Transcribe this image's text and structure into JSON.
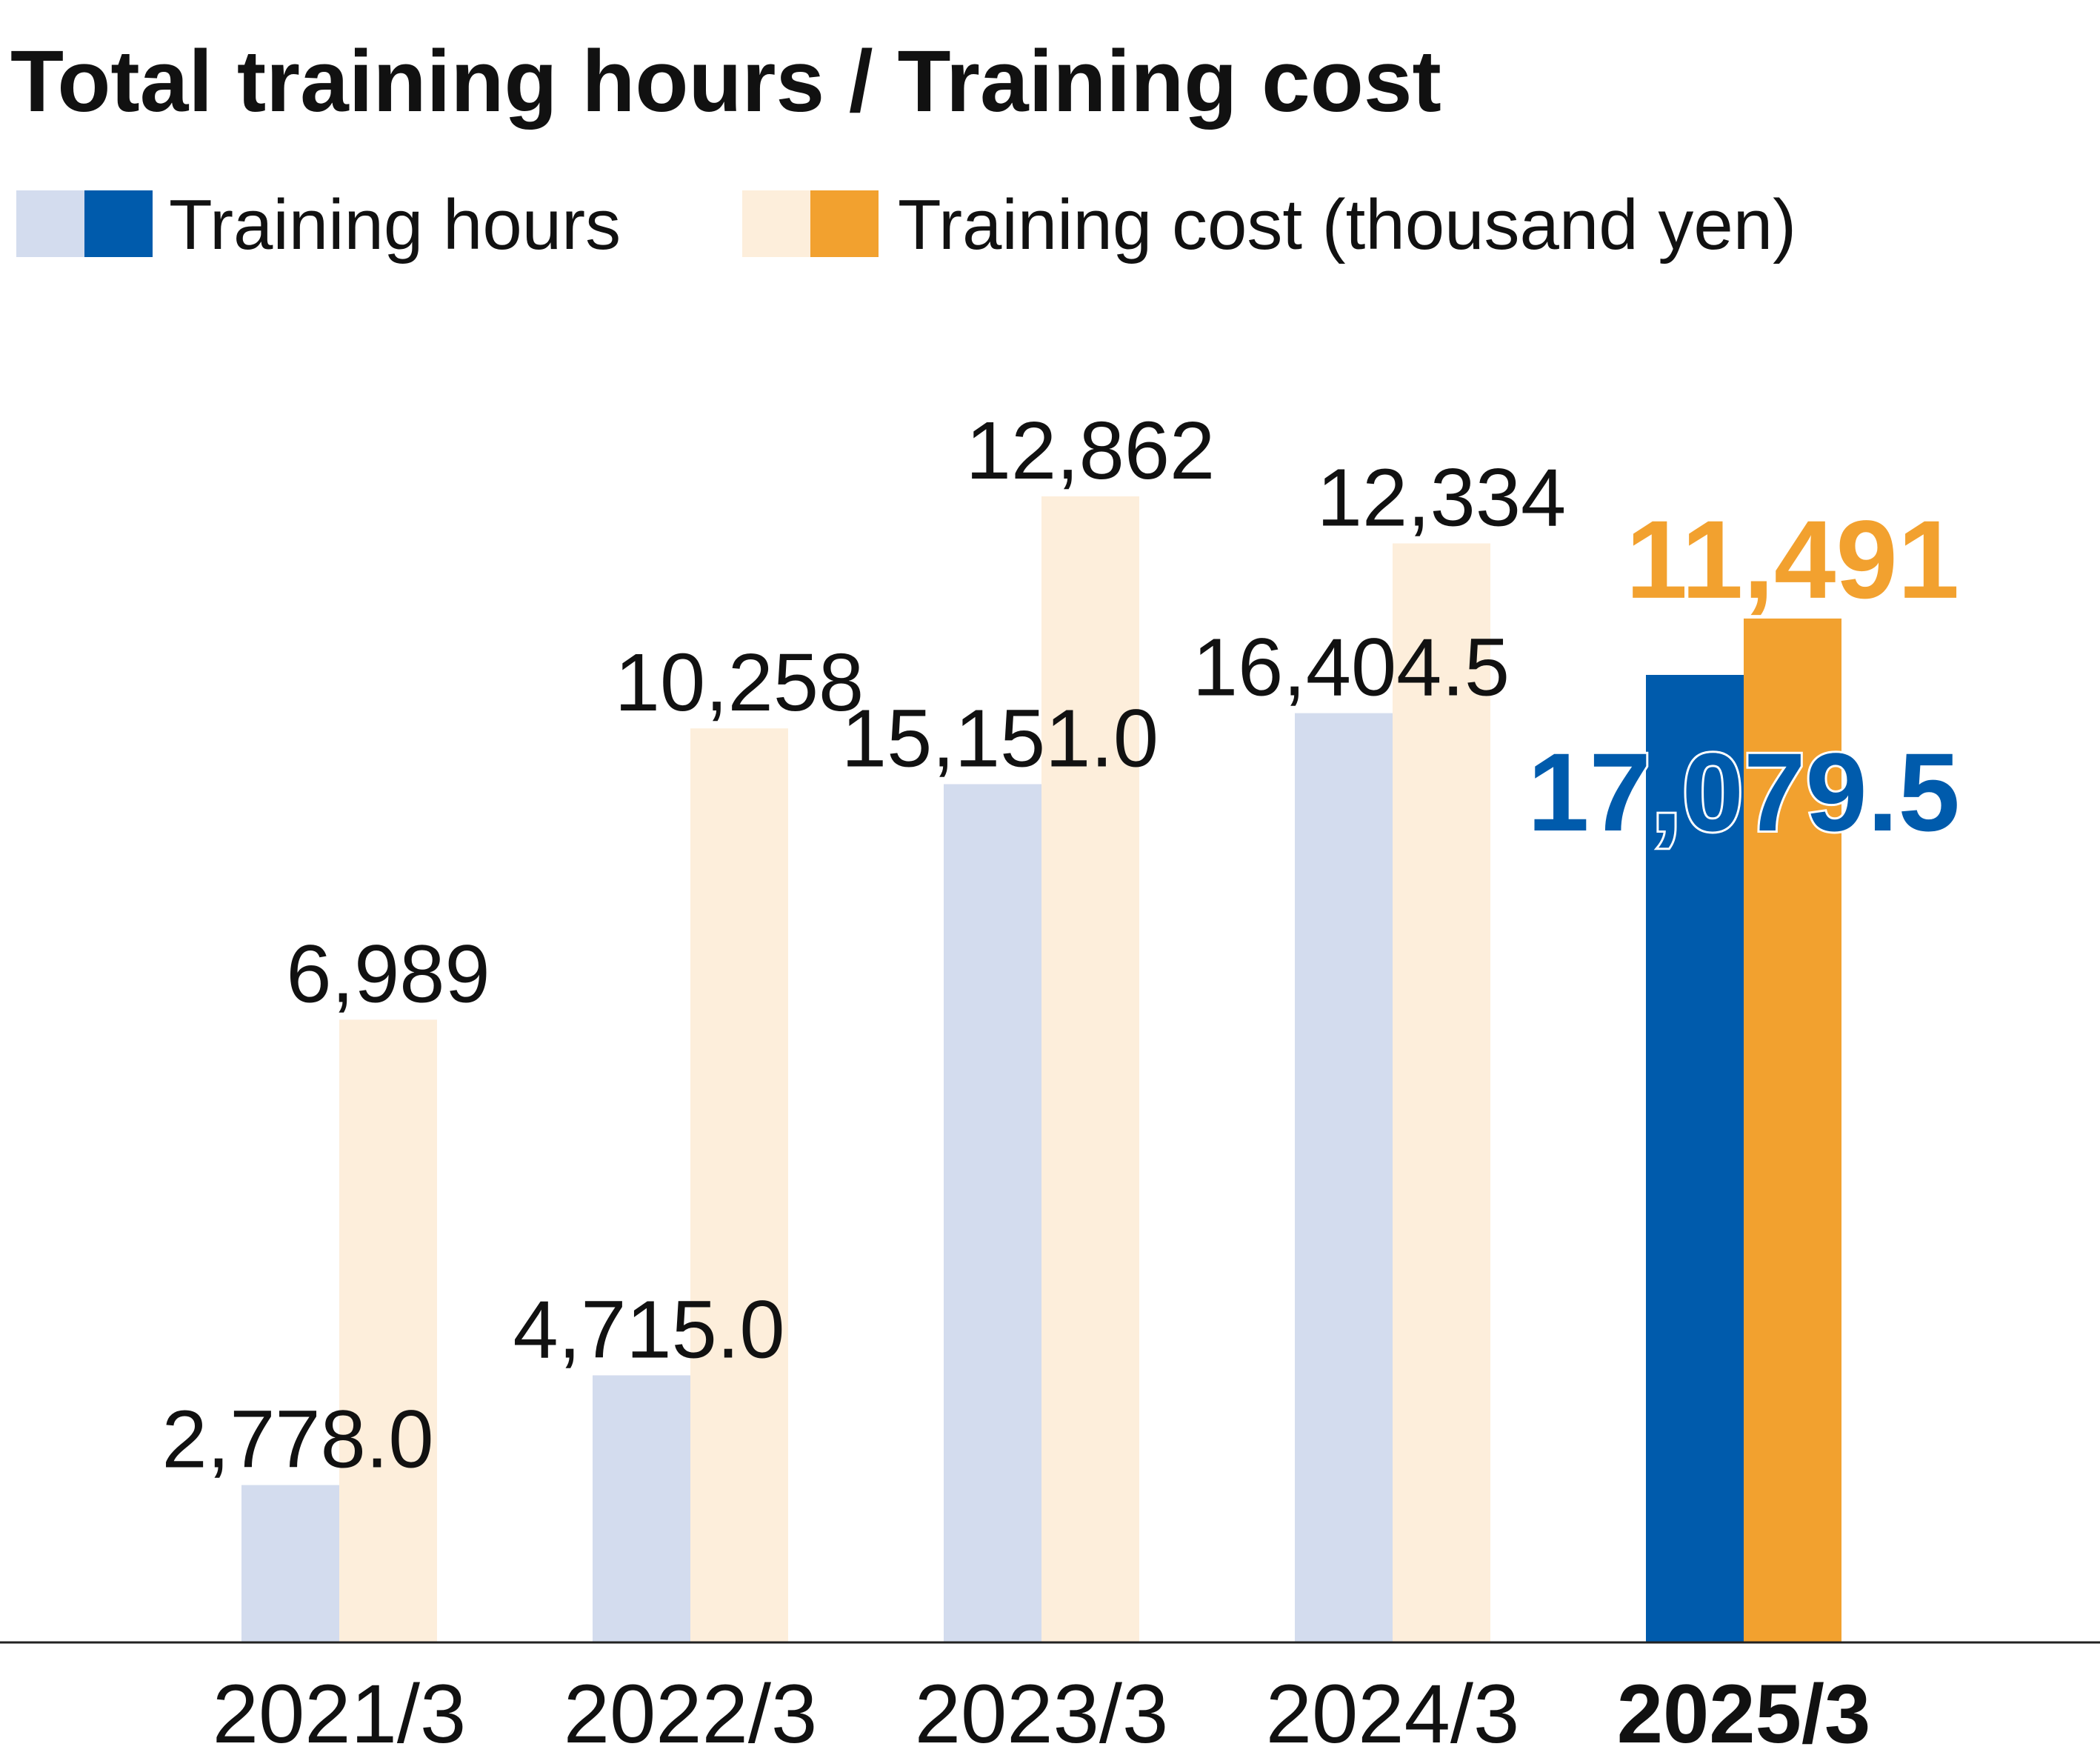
{
  "chart_data": {
    "type": "bar",
    "title": "Total training hours / Training cost",
    "categories": [
      "2021/3",
      "2022/3",
      "2023/3",
      "2024/3",
      "2025/3"
    ],
    "highlight_category": "2025/3",
    "series": [
      {
        "name": "Training hours",
        "values": [
          2778.0,
          4715.0,
          15151.0,
          16404.5,
          17079.5
        ],
        "labels": [
          "2,778.0",
          "4,715.0",
          "15,151.0",
          "16,404.5",
          "17,079.5"
        ],
        "color": "#d3dcee",
        "highlight_color": "#005bac"
      },
      {
        "name": "Training cost (thousand yen)",
        "values": [
          6989,
          10258,
          12862,
          12334,
          11491
        ],
        "labels": [
          "6,989",
          "10,258",
          "12,862",
          "12,334",
          "11,491"
        ],
        "color": "#fdeedb",
        "highlight_color": "#f2a12f"
      }
    ],
    "legend_position": "top-left",
    "grid": false
  }
}
